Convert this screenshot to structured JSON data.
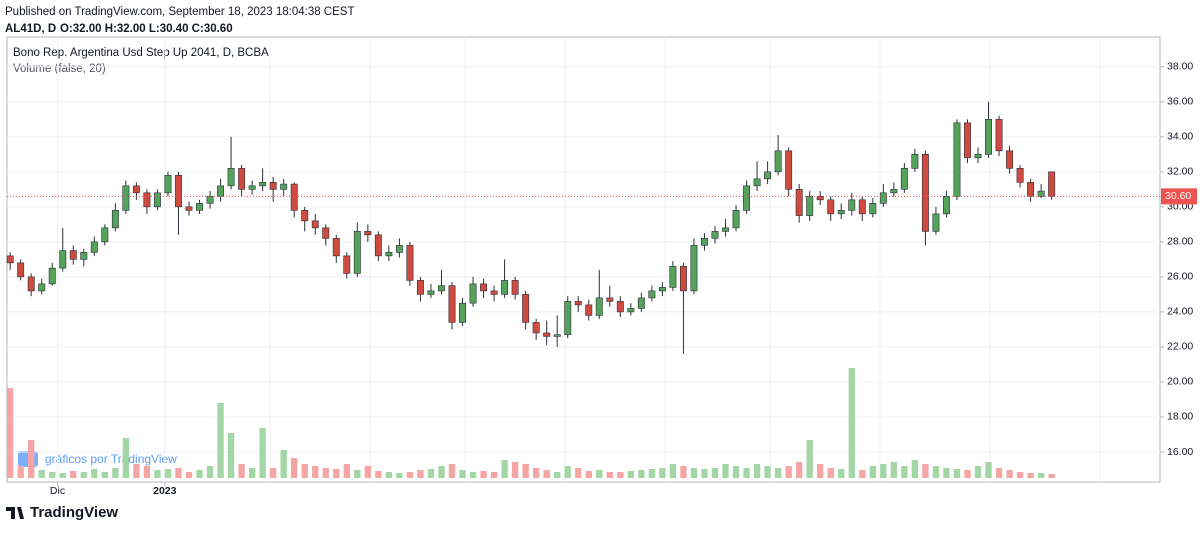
{
  "header": {
    "published": "Published on TradingView.com, September 18, 2023 18:04:38 CEST",
    "symbol": "AL41D, D",
    "ohlc": "O:32.00 H:32.00 L:30.40 C:30.60"
  },
  "watermark": "gráficos por TradingView",
  "footer": "TradingView",
  "chart_data": {
    "type": "candlestick",
    "title": "Bono Rep. Argentina Usd Step Up 2041, D, BCBA",
    "subtitle": "Volume (false, 20)",
    "up_color": "#53a35b",
    "down_color": "#cf4a3f",
    "volume_up_color": "#a3d6a5",
    "volume_down_color": "#f6a5a5",
    "ylim": [
      14.4,
      39.7
    ],
    "yticks": [
      {
        "value": 16,
        "label": "16.00"
      },
      {
        "value": 18,
        "label": "18.00"
      },
      {
        "value": 20,
        "label": "20.00"
      },
      {
        "value": 22,
        "label": "22.00"
      },
      {
        "value": 24,
        "label": "24.00"
      },
      {
        "value": 26,
        "label": "26.00"
      },
      {
        "value": 28,
        "label": "28.00"
      },
      {
        "value": 30,
        "label": "30.00"
      },
      {
        "value": 32,
        "label": "32.00"
      },
      {
        "value": 34,
        "label": "34.00"
      },
      {
        "value": 36,
        "label": "36.00"
      },
      {
        "value": 38,
        "label": "38.00"
      }
    ],
    "xlim": [
      -0.3,
      109.3
    ],
    "xticks": [
      {
        "value": 4.5,
        "label": "Dic"
      },
      {
        "value": 14.7,
        "label": "2023"
      }
    ],
    "grid": true,
    "last_price": {
      "value": 30.6,
      "label": "30.60"
    },
    "open": [
      27.2,
      26.8,
      26.0,
      25.2,
      25.6,
      26.5,
      27.5,
      27.0,
      27.4,
      28.0,
      28.8,
      29.8,
      31.2,
      30.8,
      30.0,
      30.8,
      31.8,
      30.0,
      29.8,
      30.2,
      30.6,
      31.2,
      32.2,
      31.0,
      31.2,
      31.4,
      31.0,
      31.3,
      29.8,
      29.2,
      28.8,
      28.2,
      27.2,
      26.2,
      28.6,
      28.4,
      27.2,
      27.4,
      27.8,
      25.8,
      25.0,
      25.2,
      25.5,
      23.4,
      24.5,
      25.6,
      25.2,
      25.0,
      25.8,
      25.0,
      23.4,
      22.8,
      22.6,
      22.7,
      24.6,
      24.4,
      23.8,
      24.8,
      24.6,
      24.0,
      24.2,
      24.8,
      25.2,
      25.4,
      26.6,
      25.2,
      27.8,
      28.2,
      28.6,
      28.8,
      29.8,
      31.2,
      31.6,
      32.0,
      33.2,
      31.0,
      29.5,
      30.6,
      30.4,
      29.6,
      29.8,
      30.4,
      29.6,
      30.2,
      30.8,
      31.0,
      32.2,
      33.0,
      28.6,
      29.6,
      30.6,
      34.8,
      32.8,
      33.0,
      35.0,
      33.2,
      32.2,
      31.4,
      30.6,
      32.0
    ],
    "high": [
      27.4,
      27.0,
      26.2,
      25.9,
      26.8,
      28.8,
      27.8,
      27.6,
      28.3,
      29.0,
      30.2,
      31.5,
      31.4,
      31.0,
      31.0,
      32.0,
      32.0,
      30.3,
      30.4,
      30.9,
      31.6,
      34.0,
      32.4,
      31.5,
      32.2,
      31.7,
      31.6,
      31.4,
      30.0,
      29.6,
      29.0,
      28.4,
      27.4,
      29.1,
      29.0,
      28.6,
      27.8,
      28.2,
      28.0,
      26.0,
      25.6,
      26.4,
      25.7,
      24.8,
      26.0,
      25.9,
      25.5,
      27.0,
      26.0,
      25.2,
      23.6,
      23.5,
      23.8,
      24.9,
      24.9,
      24.7,
      26.4,
      25.5,
      24.9,
      24.5,
      25.1,
      25.5,
      25.7,
      26.9,
      26.8,
      28.2,
      28.5,
      28.9,
      29.3,
      30.1,
      31.5,
      32.6,
      32.6,
      34.1,
      33.4,
      31.3,
      30.9,
      30.9,
      30.6,
      30.2,
      30.8,
      30.6,
      30.5,
      31.3,
      31.4,
      32.5,
      33.3,
      33.2,
      30.0,
      30.9,
      35.0,
      35.0,
      33.4,
      36.0,
      35.2,
      33.5,
      32.4,
      31.6,
      31.3,
      32.0
    ],
    "low": [
      26.4,
      25.8,
      24.9,
      25.0,
      25.5,
      26.3,
      26.7,
      26.6,
      27.2,
      27.8,
      28.6,
      29.6,
      30.4,
      29.6,
      29.8,
      30.6,
      28.4,
      29.5,
      29.6,
      29.9,
      30.3,
      31.0,
      30.6,
      30.7,
      30.9,
      30.3,
      30.6,
      29.4,
      28.6,
      28.4,
      27.8,
      26.8,
      25.9,
      26.0,
      28.0,
      26.9,
      26.9,
      27.1,
      25.5,
      24.6,
      24.8,
      25.0,
      23.0,
      23.2,
      24.3,
      24.8,
      24.6,
      24.8,
      24.7,
      23.0,
      22.4,
      22.1,
      22.0,
      22.5,
      24.0,
      23.5,
      23.6,
      24.3,
      23.7,
      23.8,
      24.0,
      24.6,
      24.9,
      25.2,
      21.6,
      25.0,
      27.5,
      27.9,
      28.3,
      28.6,
      29.6,
      30.9,
      31.3,
      31.8,
      30.6,
      29.1,
      29.2,
      30.1,
      29.2,
      29.3,
      29.5,
      29.2,
      29.4,
      30.0,
      30.6,
      30.8,
      32.0,
      27.8,
      28.4,
      29.4,
      30.4,
      32.5,
      32.5,
      32.8,
      32.9,
      31.9,
      31.1,
      30.3,
      30.5,
      30.4
    ],
    "close": [
      26.8,
      26.0,
      25.2,
      25.6,
      26.5,
      27.5,
      27.0,
      27.4,
      28.0,
      28.8,
      29.8,
      31.2,
      30.8,
      30.0,
      30.8,
      31.8,
      30.0,
      29.8,
      30.2,
      30.6,
      31.2,
      32.2,
      31.0,
      31.2,
      31.4,
      31.0,
      31.3,
      29.8,
      29.2,
      28.8,
      28.2,
      27.2,
      26.2,
      28.6,
      28.4,
      27.2,
      27.4,
      27.8,
      25.8,
      25.0,
      25.2,
      25.5,
      23.4,
      24.5,
      25.6,
      25.2,
      25.0,
      25.8,
      25.0,
      23.4,
      22.8,
      22.6,
      22.7,
      24.6,
      24.4,
      23.8,
      24.8,
      24.6,
      24.0,
      24.2,
      24.8,
      25.2,
      25.4,
      26.6,
      25.2,
      27.8,
      28.2,
      28.6,
      28.8,
      29.8,
      31.2,
      31.6,
      32.0,
      33.2,
      31.0,
      29.5,
      30.6,
      30.4,
      29.6,
      29.8,
      30.4,
      29.6,
      30.2,
      30.8,
      31.0,
      32.2,
      33.0,
      28.6,
      29.6,
      30.6,
      34.8,
      32.8,
      33.0,
      35.0,
      33.2,
      32.2,
      31.4,
      30.6,
      30.9,
      30.6
    ],
    "volume": [
      90,
      12,
      38,
      8,
      6,
      5,
      7,
      6,
      9,
      6,
      10,
      40,
      14,
      12,
      8,
      9,
      10,
      6,
      8,
      12,
      75,
      45,
      14,
      10,
      50,
      10,
      28,
      20,
      14,
      12,
      10,
      9,
      14,
      8,
      12,
      7,
      6,
      5,
      6,
      8,
      9,
      12,
      14,
      8,
      6,
      7,
      6,
      18,
      16,
      14,
      10,
      8,
      6,
      12,
      10,
      7,
      8,
      6,
      6,
      7,
      8,
      9,
      10,
      14,
      12,
      10,
      9,
      10,
      14,
      12,
      10,
      14,
      12,
      10,
      12,
      16,
      38,
      14,
      10,
      9,
      110,
      8,
      12,
      14,
      16,
      12,
      18,
      14,
      12,
      10,
      9,
      8,
      12,
      16,
      10,
      8,
      6,
      5,
      5,
      4
    ]
  }
}
